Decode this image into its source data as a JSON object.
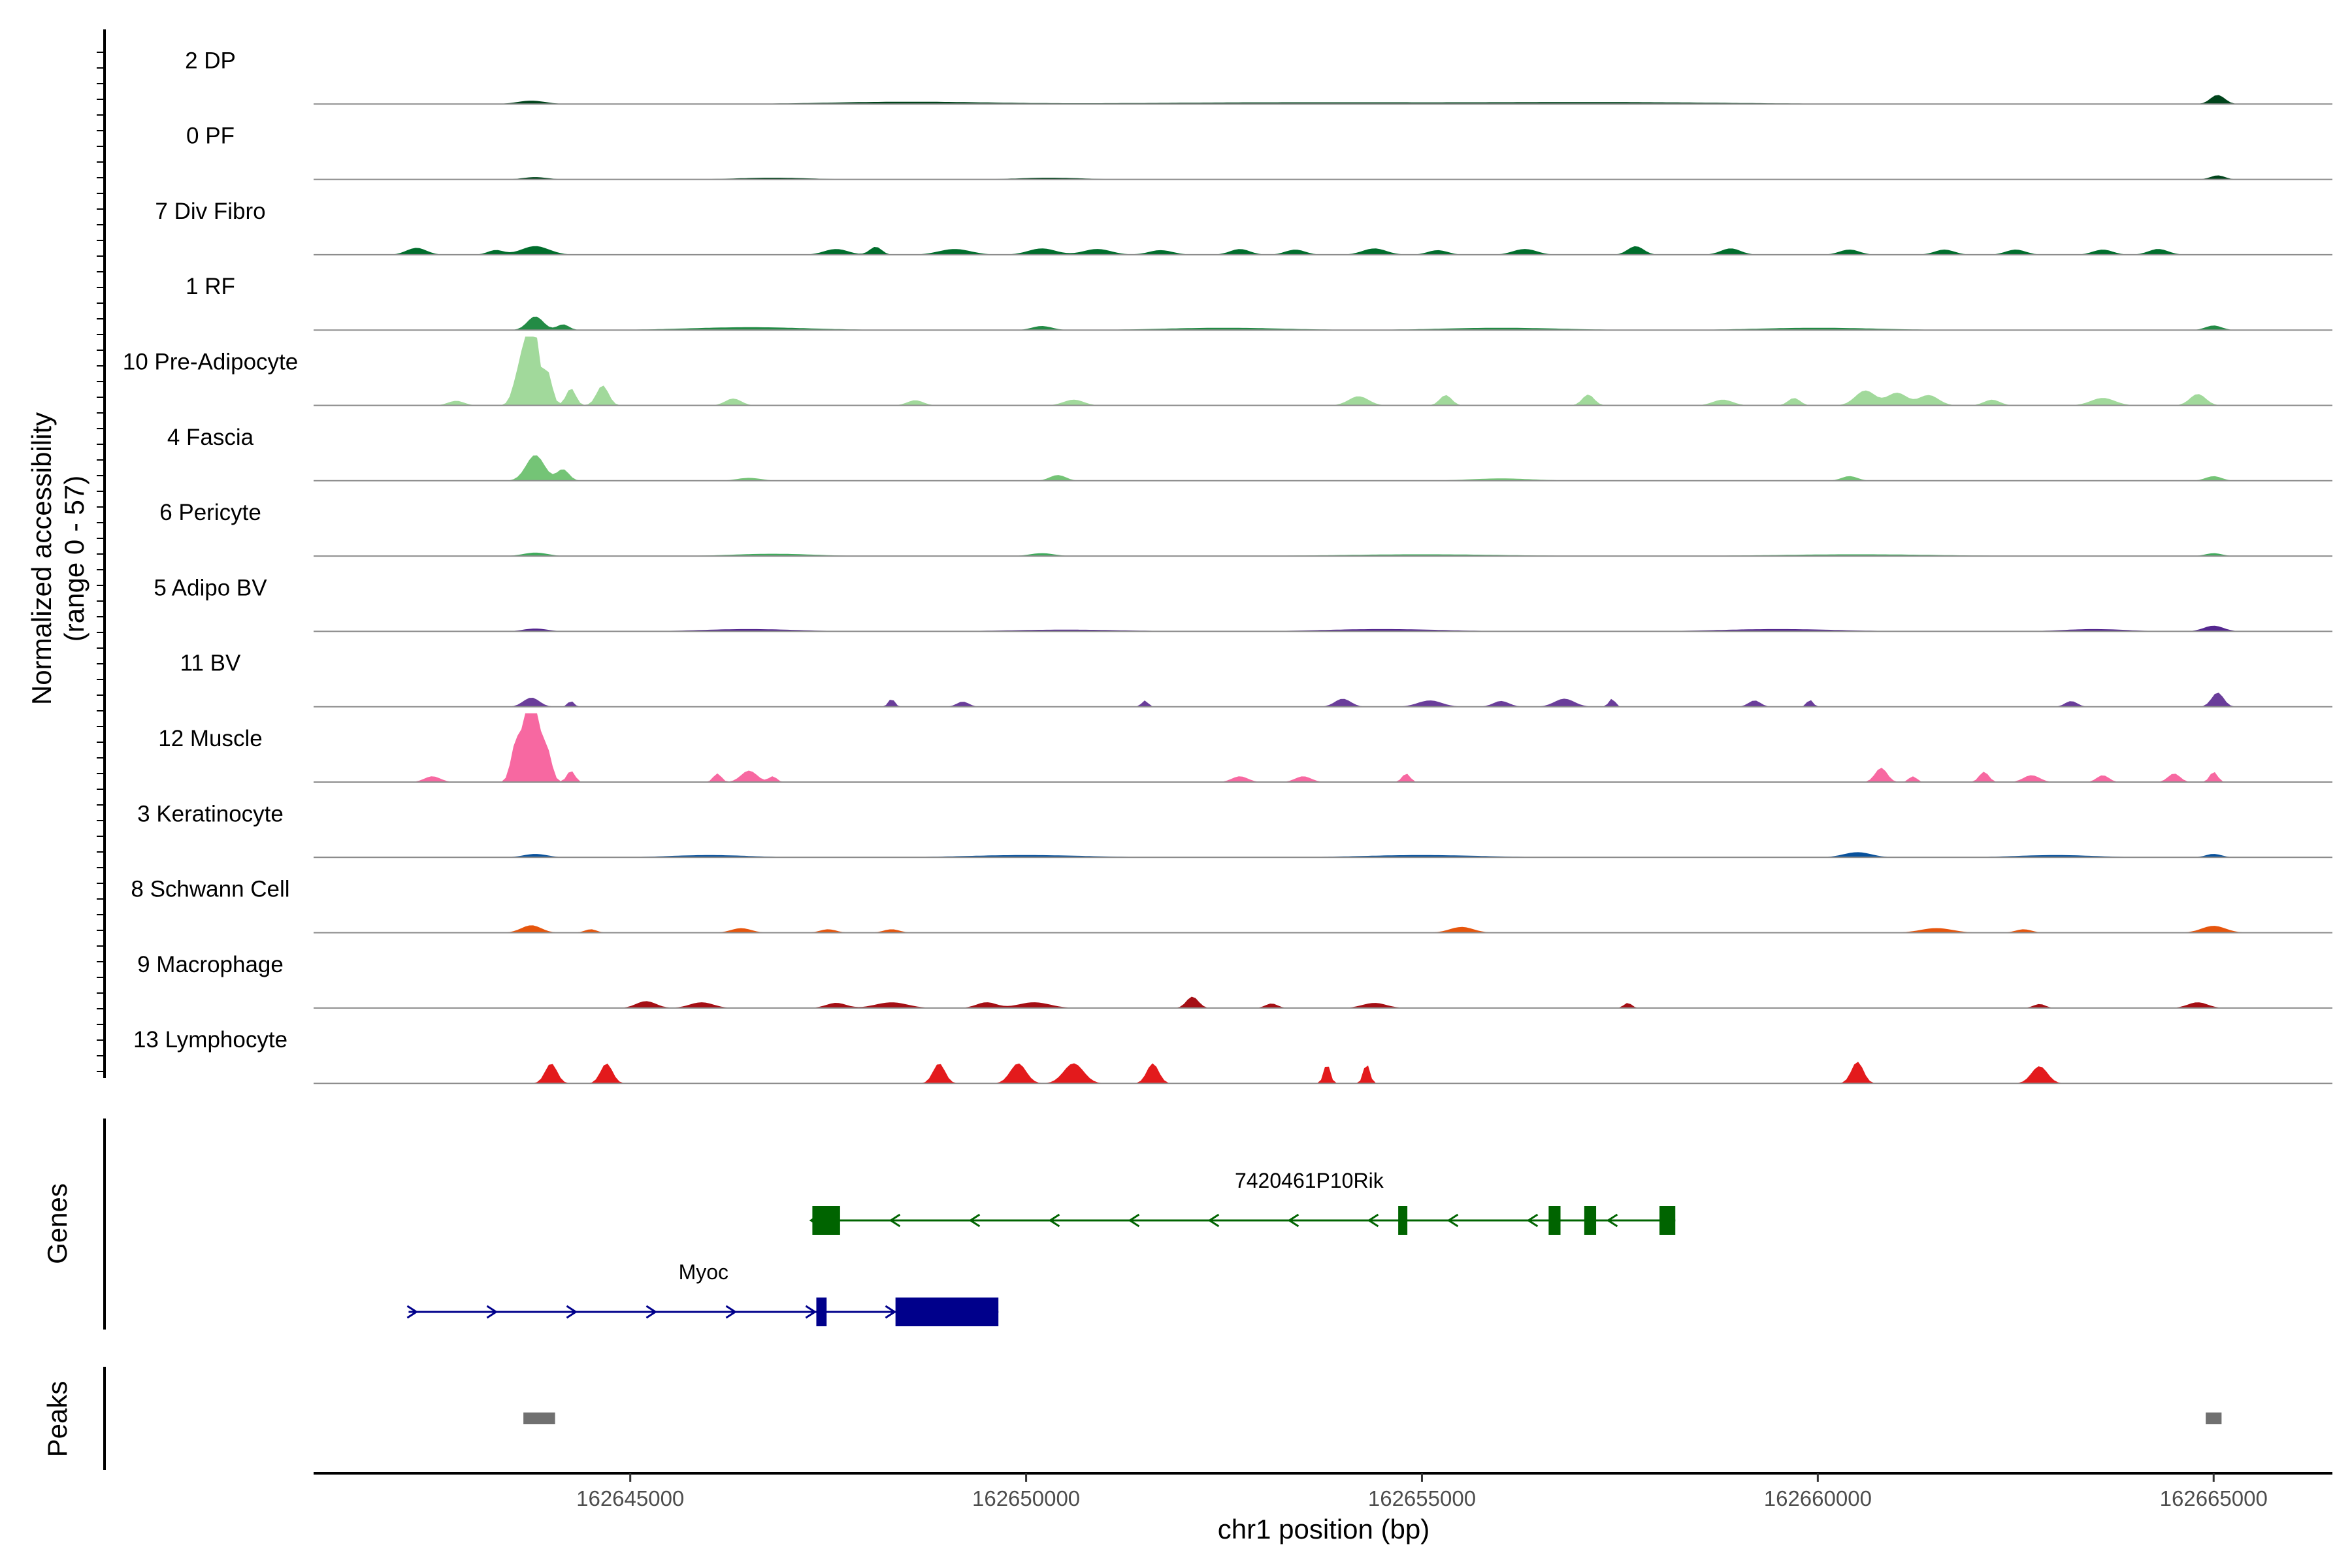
{
  "chart_data": {
    "type": "area",
    "title": "",
    "xlabel": "chr1 position (bp)",
    "ylabel": "Normalized accessibility",
    "ylabel_range": "(range 0 - 57)",
    "ylim": [
      0,
      57
    ],
    "xlim": [
      162641000,
      162666500
    ],
    "x_ticks": [
      162645000,
      162650000,
      162655000,
      162660000,
      162665000
    ],
    "x_tick_labels": [
      "162645000",
      "162650000",
      "162655000",
      "162660000",
      "162665000"
    ],
    "tracks": [
      {
        "name": "2 DP",
        "color": "#00441b",
        "peaks": [
          [
            162643750,
            0.6,
            350
          ],
          [
            162648500,
            0.4,
            2000
          ],
          [
            162653500,
            0.3,
            4000
          ],
          [
            162657500,
            0.3,
            3000
          ],
          [
            162665050,
            1.6,
            180
          ]
        ]
      },
      {
        "name": "0 PF",
        "color": "#00441b",
        "peaks": [
          [
            162643800,
            0.4,
            300
          ],
          [
            162646800,
            0.3,
            900
          ],
          [
            162650300,
            0.3,
            800
          ],
          [
            162665050,
            0.7,
            180
          ]
        ]
      },
      {
        "name": "7 Div Fibro",
        "color": "#006d2c",
        "peaks": [
          [
            162642300,
            1.2,
            250
          ],
          [
            162643300,
            0.8,
            200
          ],
          [
            162643800,
            1.5,
            350
          ],
          [
            162647600,
            1.0,
            300
          ],
          [
            162648100,
            1.4,
            150
          ],
          [
            162649100,
            1.0,
            400
          ],
          [
            162650200,
            1.1,
            350
          ],
          [
            162650900,
            1.0,
            350
          ],
          [
            162651700,
            0.8,
            300
          ],
          [
            162652700,
            1.0,
            250
          ],
          [
            162653400,
            0.9,
            250
          ],
          [
            162654400,
            1.1,
            300
          ],
          [
            162655200,
            0.8,
            250
          ],
          [
            162656300,
            1.0,
            300
          ],
          [
            162657700,
            1.5,
            200
          ],
          [
            162658900,
            1.1,
            250
          ],
          [
            162660400,
            0.9,
            250
          ],
          [
            162661600,
            0.9,
            250
          ],
          [
            162662500,
            0.9,
            250
          ],
          [
            162663600,
            0.9,
            250
          ],
          [
            162664300,
            1.0,
            250
          ]
        ]
      },
      {
        "name": "1 RF",
        "color": "#238b45",
        "peaks": [
          [
            162643800,
            2.4,
            200
          ],
          [
            162644150,
            1.0,
            150
          ],
          [
            162646500,
            0.5,
            1500
          ],
          [
            162650200,
            0.7,
            250
          ],
          [
            162652500,
            0.4,
            1500
          ],
          [
            162656000,
            0.4,
            1500
          ],
          [
            162660000,
            0.4,
            1500
          ],
          [
            162665000,
            0.8,
            200
          ]
        ]
      },
      {
        "name": "10 Pre-Adipocyte",
        "color": "#a1d99b",
        "peaks": [
          [
            162643750,
            19.0,
            140
          ],
          [
            162643600,
            6.0,
            150
          ],
          [
            162643950,
            6.0,
            120
          ],
          [
            162644250,
            3.0,
            120
          ],
          [
            162644650,
            3.5,
            150
          ],
          [
            162642800,
            0.8,
            200
          ],
          [
            162646300,
            1.2,
            200
          ],
          [
            162648600,
            0.9,
            200
          ],
          [
            162650600,
            1.0,
            250
          ],
          [
            162654200,
            1.6,
            250
          ],
          [
            162655300,
            1.8,
            150
          ],
          [
            162657100,
            1.9,
            150
          ],
          [
            162658800,
            1.0,
            250
          ],
          [
            162659700,
            1.3,
            150
          ],
          [
            162660600,
            2.6,
            250
          ],
          [
            162661000,
            2.2,
            250
          ],
          [
            162661400,
            1.8,
            250
          ],
          [
            162662200,
            1.0,
            200
          ],
          [
            162663600,
            1.3,
            300
          ],
          [
            162664800,
            2.0,
            200
          ]
        ]
      },
      {
        "name": "4 Fascia",
        "color": "#74c476",
        "peaks": [
          [
            162643800,
            4.5,
            230
          ],
          [
            162644150,
            2.0,
            150
          ],
          [
            162646500,
            0.5,
            300
          ],
          [
            162650400,
            1.0,
            200
          ],
          [
            162656000,
            0.4,
            800
          ],
          [
            162660400,
            0.8,
            200
          ],
          [
            162665000,
            0.8,
            200
          ]
        ]
      },
      {
        "name": "6 Pericyte",
        "color": "#41ab5d",
        "peaks": [
          [
            162643800,
            0.6,
            300
          ],
          [
            162646800,
            0.4,
            1000
          ],
          [
            162650200,
            0.5,
            300
          ],
          [
            162655000,
            0.3,
            2000
          ],
          [
            162660500,
            0.3,
            2000
          ],
          [
            162665000,
            0.5,
            200
          ]
        ]
      },
      {
        "name": "5 Adipo BV",
        "color": "#54278f",
        "peaks": [
          [
            162643800,
            0.5,
            300
          ],
          [
            162646500,
            0.4,
            1200
          ],
          [
            162650500,
            0.3,
            1500
          ],
          [
            162654500,
            0.4,
            1500
          ],
          [
            162659500,
            0.4,
            1500
          ],
          [
            162663500,
            0.4,
            800
          ],
          [
            162665000,
            1.0,
            250
          ]
        ]
      },
      {
        "name": "11 BV",
        "color": "#6a3d9a",
        "peaks": [
          [
            162643750,
            1.6,
            200
          ],
          [
            162644250,
            1.0,
            80
          ],
          [
            162648300,
            1.4,
            80
          ],
          [
            162649200,
            0.9,
            150
          ],
          [
            162651500,
            1.1,
            80
          ],
          [
            162654000,
            1.4,
            200
          ],
          [
            162655100,
            1.1,
            300
          ],
          [
            162656000,
            1.0,
            200
          ],
          [
            162656800,
            1.4,
            250
          ],
          [
            162657400,
            1.4,
            80
          ],
          [
            162659200,
            1.1,
            150
          ],
          [
            162659900,
            1.2,
            80
          ],
          [
            162663200,
            1.0,
            150
          ],
          [
            162665050,
            2.5,
            150
          ]
        ]
      },
      {
        "name": "12 Muscle",
        "color": "#f768a1",
        "peaks": [
          [
            162643750,
            17.0,
            180
          ],
          [
            162643550,
            6.0,
            120
          ],
          [
            162643950,
            5.0,
            120
          ],
          [
            162644250,
            2.0,
            100
          ],
          [
            162642500,
            1.0,
            200
          ],
          [
            162646100,
            1.5,
            100
          ],
          [
            162646500,
            2.0,
            200
          ],
          [
            162646800,
            1.0,
            100
          ],
          [
            162652700,
            1.0,
            200
          ],
          [
            162653500,
            1.0,
            200
          ],
          [
            162654800,
            1.5,
            100
          ],
          [
            162660800,
            2.5,
            150
          ],
          [
            162661200,
            1.0,
            100
          ],
          [
            162662100,
            1.8,
            120
          ],
          [
            162662700,
            1.2,
            200
          ],
          [
            162663600,
            1.2,
            150
          ],
          [
            162664500,
            1.5,
            150
          ],
          [
            162665000,
            1.8,
            100
          ]
        ]
      },
      {
        "name": "3 Keratinocyte",
        "color": "#08519c",
        "peaks": [
          [
            162643800,
            0.6,
            300
          ],
          [
            162646000,
            0.4,
            1000
          ],
          [
            162650000,
            0.4,
            1500
          ],
          [
            162655000,
            0.4,
            1500
          ],
          [
            162660500,
            0.9,
            350
          ],
          [
            162663000,
            0.4,
            1000
          ],
          [
            162665000,
            0.6,
            200
          ]
        ]
      },
      {
        "name": "8 Schwann Cell",
        "color": "#e6550d",
        "peaks": [
          [
            162643750,
            1.3,
            250
          ],
          [
            162644500,
            0.6,
            150
          ],
          [
            162646400,
            0.8,
            250
          ],
          [
            162647500,
            0.6,
            200
          ],
          [
            162648300,
            0.6,
            200
          ],
          [
            162655500,
            1.0,
            300
          ],
          [
            162661500,
            0.8,
            400
          ],
          [
            162662600,
            0.6,
            200
          ],
          [
            162665000,
            1.2,
            300
          ]
        ]
      },
      {
        "name": "9 Macrophage",
        "color": "#a50f15",
        "peaks": [
          [
            162645200,
            1.2,
            250
          ],
          [
            162645900,
            1.0,
            300
          ],
          [
            162647600,
            0.9,
            250
          ],
          [
            162648300,
            1.0,
            400
          ],
          [
            162649500,
            1.0,
            250
          ],
          [
            162650100,
            1.0,
            400
          ],
          [
            162652100,
            2.0,
            150
          ],
          [
            162653100,
            0.8,
            150
          ],
          [
            162654400,
            0.9,
            300
          ],
          [
            162657600,
            0.9,
            100
          ],
          [
            162662800,
            0.7,
            150
          ],
          [
            162664800,
            1.0,
            250
          ]
        ]
      },
      {
        "name": "13 Lymphocyte",
        "color": "#e31a1c",
        "peaks": [
          [
            162644000,
            3.5,
            150
          ],
          [
            162644700,
            3.5,
            150
          ],
          [
            162648900,
            3.5,
            150
          ],
          [
            162649900,
            3.5,
            200
          ],
          [
            162650600,
            3.5,
            250
          ],
          [
            162651600,
            3.5,
            150
          ],
          [
            162653800,
            3.5,
            80
          ],
          [
            162654300,
            3.5,
            80
          ],
          [
            162660500,
            3.8,
            150
          ],
          [
            162662800,
            3.0,
            200
          ]
        ]
      }
    ],
    "genes_panel": {
      "label": "Genes",
      "genes": [
        {
          "name": "7420461P10Rik",
          "color": "#006400",
          "strand": "-",
          "start": 162647300,
          "end": 162658200,
          "exons": [
            [
              162647300,
              162647650
            ],
            [
              162654700,
              162654800
            ],
            [
              162656600,
              162656750
            ],
            [
              162657050,
              162657200
            ],
            [
              162658000,
              162658200
            ]
          ]
        },
        {
          "name": "Myoc",
          "color": "#00008b",
          "strand": "+",
          "start": 162642200,
          "end": 162649650,
          "exons": [
            [
              162647350,
              162647480
            ],
            [
              162648350,
              162649650
            ]
          ]
        }
      ]
    },
    "peaks_panel": {
      "label": "Peaks",
      "color": "#707070",
      "regions": [
        [
          162643650,
          162644050
        ],
        [
          162664900,
          162665100
        ]
      ]
    }
  }
}
